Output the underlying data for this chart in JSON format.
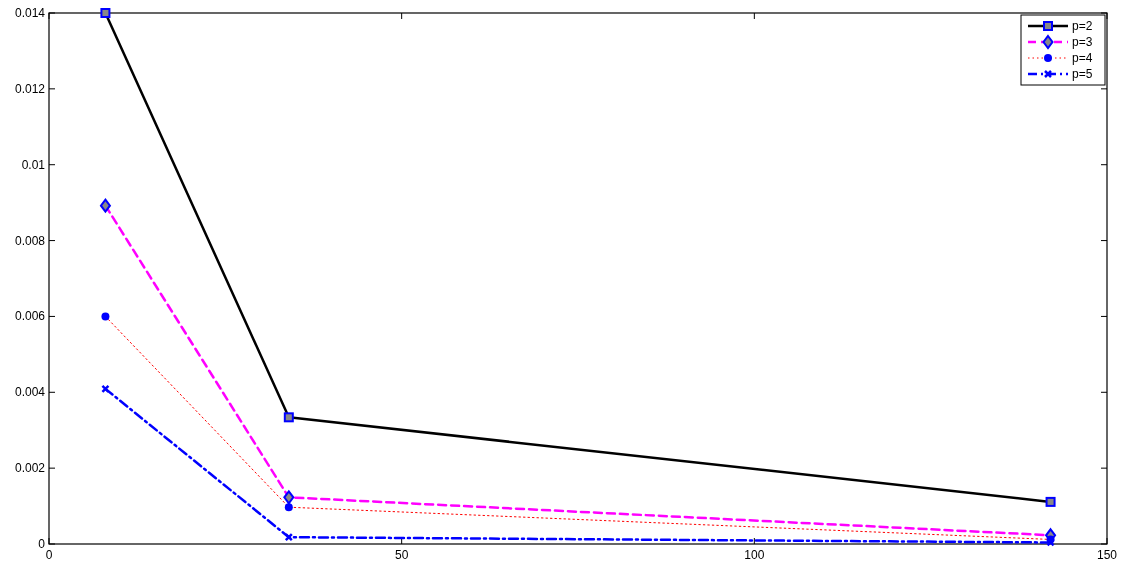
{
  "chart_data": {
    "type": "line",
    "x": [
      8,
      34,
      142
    ],
    "xlim": [
      0,
      150
    ],
    "xticks": [
      0,
      50,
      100,
      150
    ],
    "ylim": [
      0,
      0.014
    ],
    "yticks": [
      0,
      0.002,
      0.004,
      0.006,
      0.008,
      0.01,
      0.012,
      0.014
    ],
    "grid": false,
    "legend": "top right",
    "series": [
      {
        "name": "p=2",
        "color": "#000000",
        "line_style": "solid",
        "marker": "square",
        "values": [
          0.014,
          0.00334,
          0.00111
        ]
      },
      {
        "name": "p=3",
        "color": "#ff00ff",
        "line_style": "dashed",
        "marker": "diamond",
        "values": [
          0.00892,
          0.00123,
          0.00023
        ]
      },
      {
        "name": "p=4",
        "color": "#ff0000",
        "line_style": "dotted",
        "marker": "circle",
        "values": [
          0.006,
          0.00097,
          0.00012
        ]
      },
      {
        "name": "p=5",
        "color": "#0000ff",
        "line_style": "dashdot",
        "marker": "cross",
        "values": [
          0.00409,
          0.00018,
          4e-05
        ]
      }
    ]
  }
}
